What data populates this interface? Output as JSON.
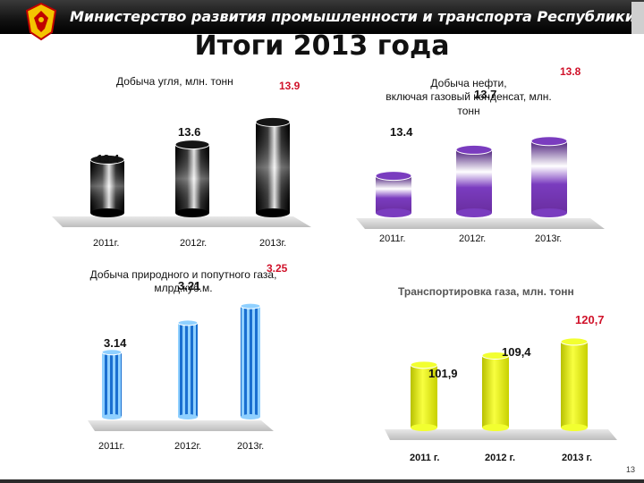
{
  "header": {
    "title": "Министерство развития промышленности и транспорта Республики"
  },
  "page": {
    "title": "Итоги 2013 года",
    "slide_number": "13"
  },
  "colors": {
    "header_bg": "#111111",
    "value_red": "#d0122a",
    "coal": "#111111",
    "oil": "#6a2ea0",
    "gas": "#2e8be0",
    "transport": "#e6ee00"
  },
  "chart_data": [
    {
      "id": "coal",
      "type": "bar",
      "title": "Добыча угля, млн. тонн",
      "categories": [
        "2011г.",
        "2012г.",
        "2013г."
      ],
      "values": [
        13.4,
        13.6,
        13.9
      ],
      "data_labels": [
        "13.4",
        "13.6",
        "13.9"
      ],
      "ylim": [
        13.0,
        14.0
      ]
    },
    {
      "id": "oil",
      "type": "bar",
      "title": "Добыча нефти, включая газовый конденсат, млн. тонн",
      "categories": [
        "2011г.",
        "2012г.",
        "2013г."
      ],
      "values": [
        13.4,
        13.7,
        13.8
      ],
      "data_labels": [
        "13.4",
        "13.7",
        "13.8"
      ],
      "ylim": [
        13.2,
        13.9
      ]
    },
    {
      "id": "gas",
      "type": "bar",
      "title": "Добыча природного и попутного газа, млрд.куб.м.",
      "categories": [
        "2011г.",
        "2012г.",
        "2013г."
      ],
      "values": [
        3.14,
        3.21,
        3.25
      ],
      "data_labels": [
        "3.14",
        "3.21",
        "3.25"
      ],
      "ylim": [
        3.05,
        3.28
      ]
    },
    {
      "id": "transport",
      "type": "bar",
      "title": "Транспортировка газа, млн. тонн",
      "categories": [
        "2011 г.",
        "2012 г.",
        "2013 г."
      ],
      "values": [
        101.9,
        109.4,
        120.7
      ],
      "data_labels": [
        "101,9",
        "109,4",
        "120,7"
      ],
      "ylim": [
        80,
        125
      ]
    }
  ]
}
